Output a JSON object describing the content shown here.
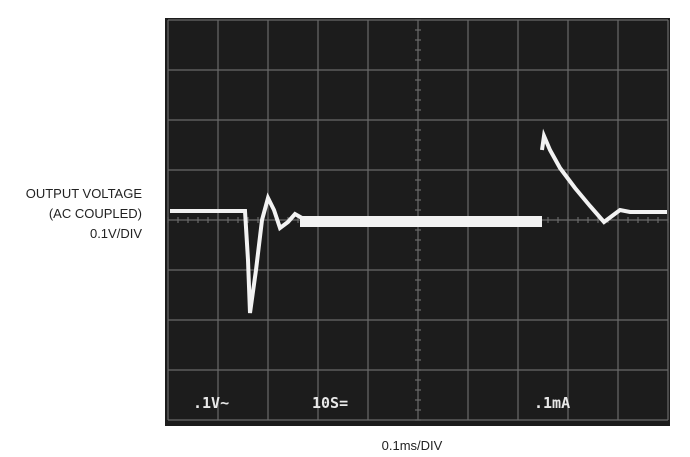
{
  "y_label": {
    "line1": "OUTPUT VOLTAGE",
    "line2": "(AC COUPLED)",
    "line3": "0.1V/DIV"
  },
  "x_label": "0.1ms/DIV",
  "readouts": [
    ".1V~",
    "10S=",
    ".1mA"
  ]
}
